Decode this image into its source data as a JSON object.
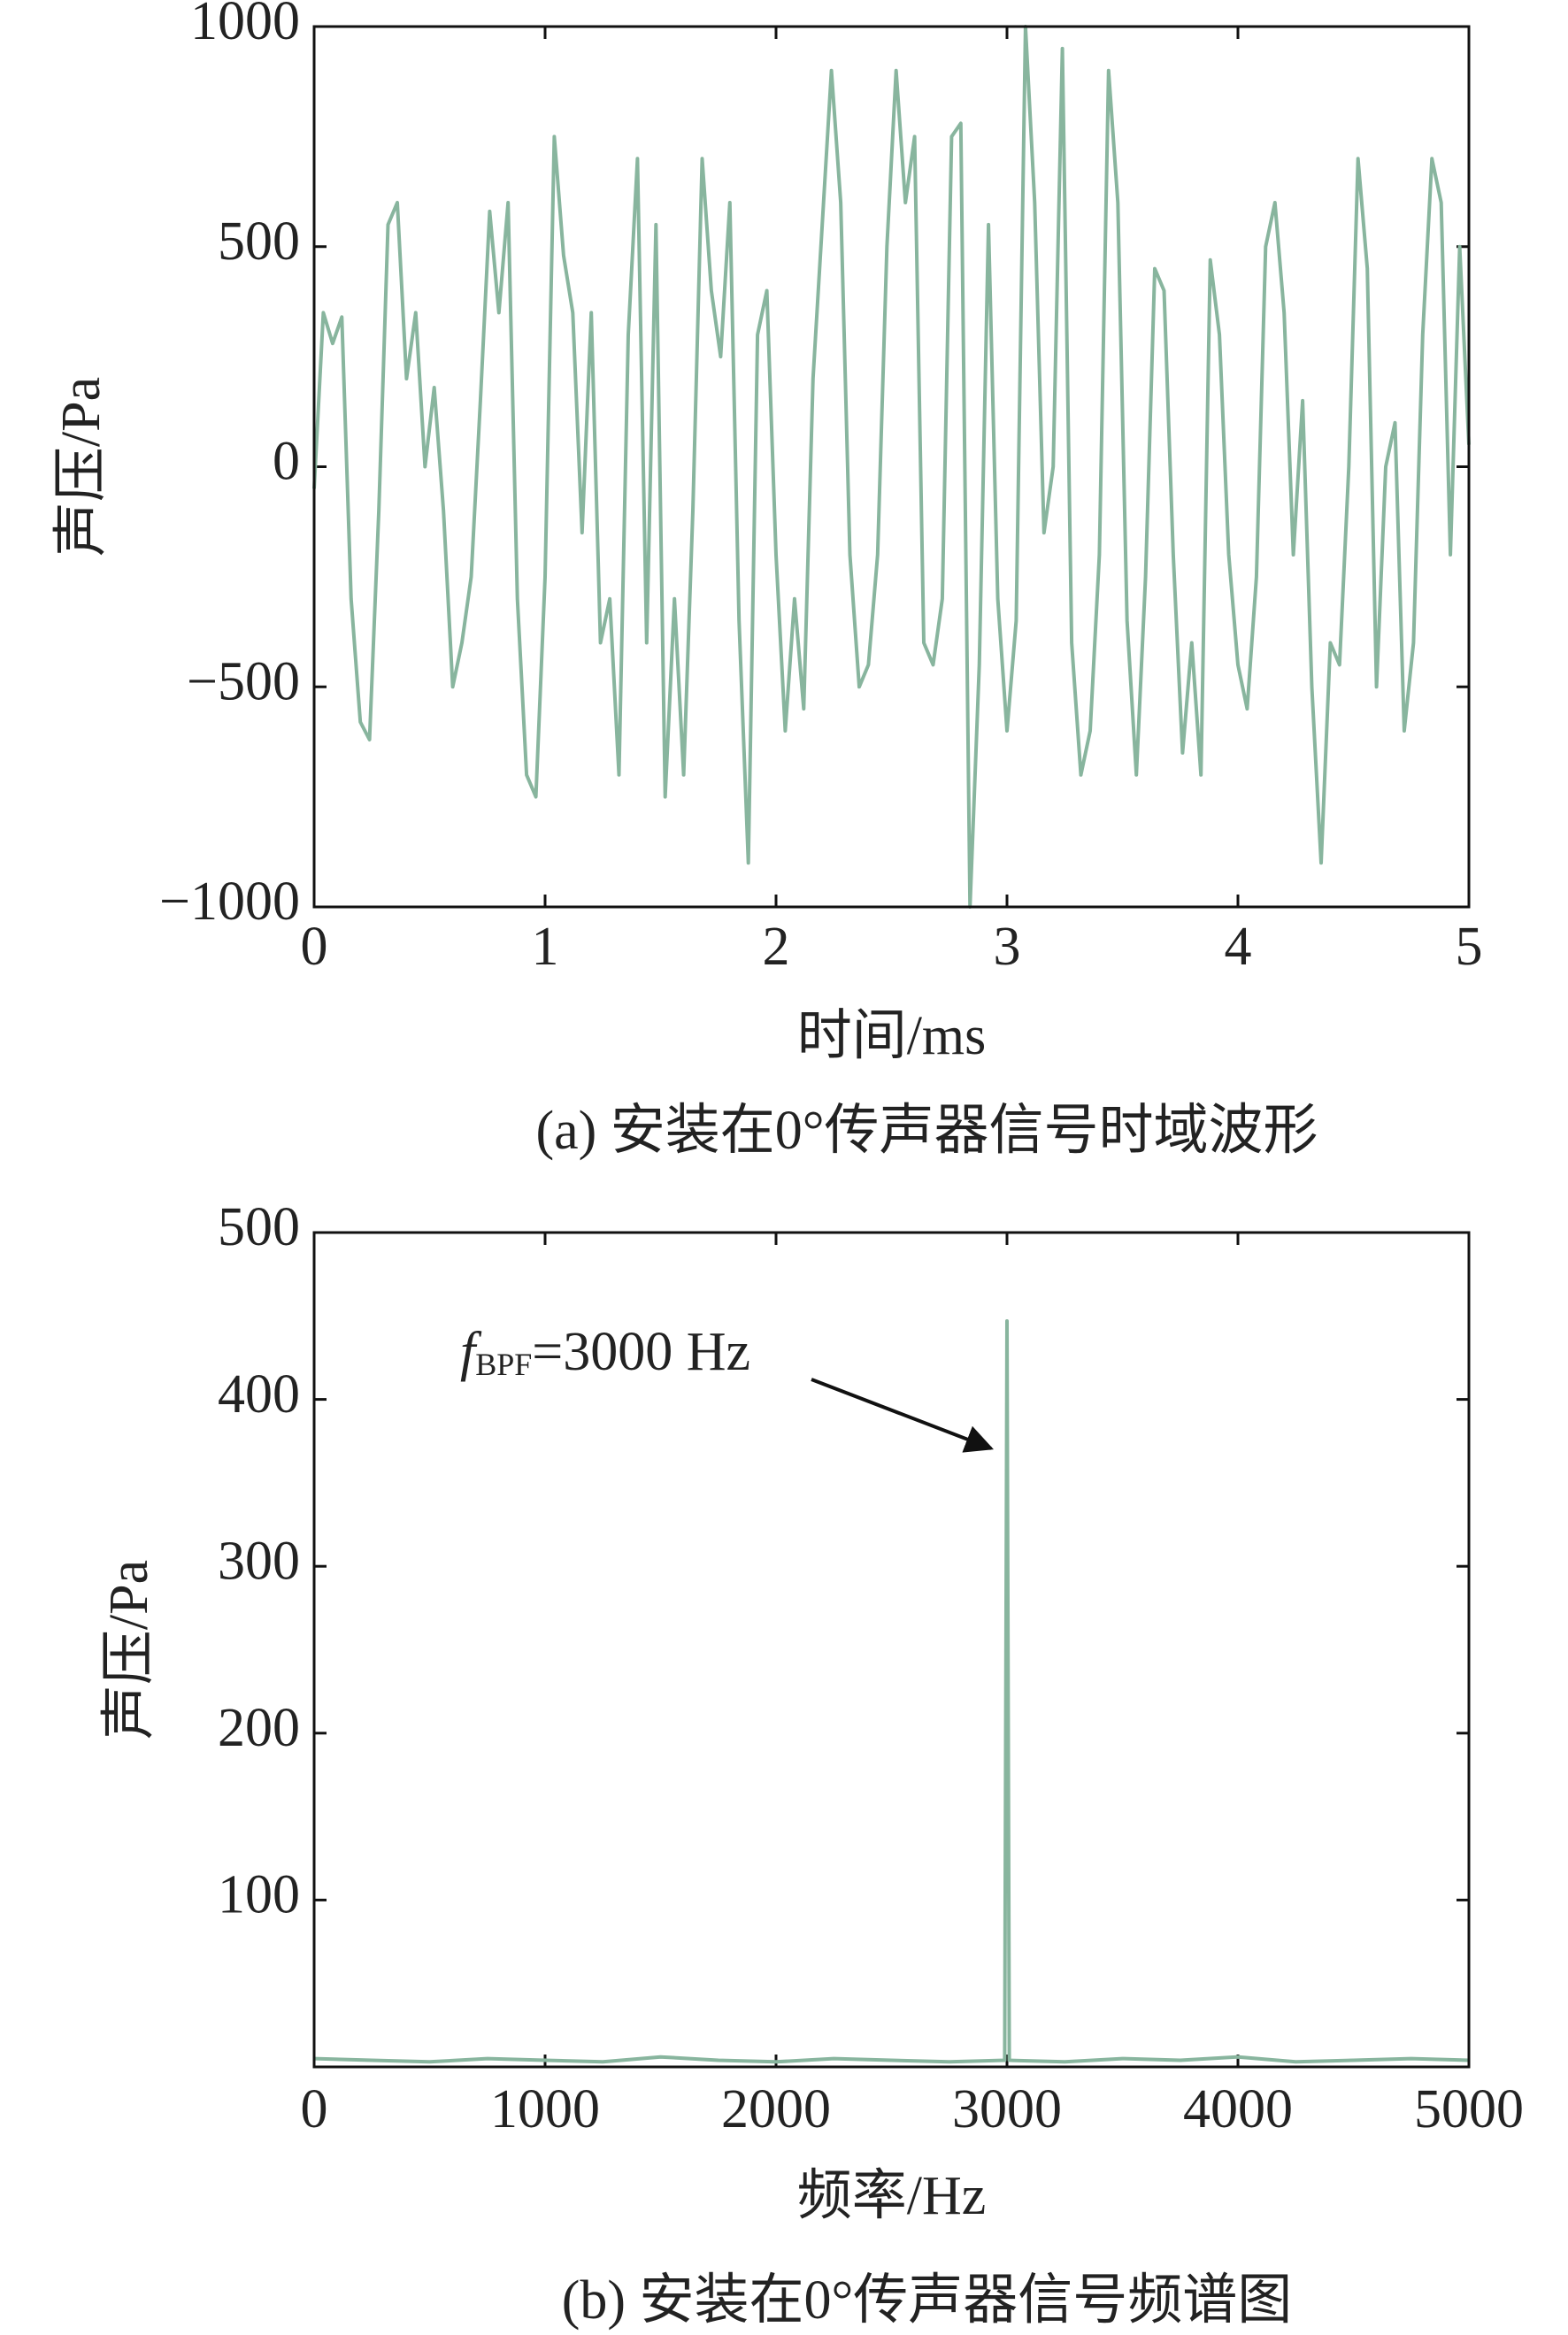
{
  "chart_data": [
    {
      "type": "line",
      "xlabel": "时间/ms",
      "ylabel": "声压/Pa",
      "caption": "(a) 安装在0°传声器信号时域波形",
      "color": "#88b59e",
      "xlim": [
        0,
        5
      ],
      "ylim": [
        -1000,
        1000
      ],
      "xticks": [
        0,
        1,
        2,
        3,
        4,
        5
      ],
      "yticks": [
        {
          "value": -1000,
          "label": "−1000"
        },
        {
          "value": -500,
          "label": "−500"
        },
        0,
        500,
        1000
      ],
      "x": [
        0,
        0.04,
        0.08,
        0.12,
        0.16,
        0.2,
        0.24,
        0.28,
        0.32,
        0.36,
        0.4,
        0.44,
        0.48,
        0.52,
        0.56,
        0.6,
        0.64,
        0.68,
        0.72,
        0.76,
        0.8,
        0.84,
        0.88,
        0.92,
        0.96,
        1.0,
        1.04,
        1.08,
        1.12,
        1.16,
        1.2,
        1.24,
        1.28,
        1.32,
        1.36,
        1.4,
        1.44,
        1.48,
        1.52,
        1.56,
        1.6,
        1.64,
        1.68,
        1.72,
        1.76,
        1.8,
        1.84,
        1.88,
        1.92,
        1.96,
        2.0,
        2.04,
        2.08,
        2.12,
        2.16,
        2.2,
        2.24,
        2.28,
        2.32,
        2.36,
        2.4,
        2.44,
        2.48,
        2.52,
        2.56,
        2.6,
        2.64,
        2.68,
        2.72,
        2.76,
        2.8,
        2.84,
        2.88,
        2.92,
        2.96,
        3.0,
        3.04,
        3.08,
        3.12,
        3.16,
        3.2,
        3.24,
        3.28,
        3.32,
        3.36,
        3.4,
        3.44,
        3.48,
        3.52,
        3.56,
        3.6,
        3.64,
        3.68,
        3.72,
        3.76,
        3.8,
        3.84,
        3.88,
        3.92,
        3.96,
        4.0,
        4.04,
        4.08,
        4.12,
        4.16,
        4.2,
        4.24,
        4.28,
        4.32,
        4.36,
        4.4,
        4.44,
        4.48,
        4.52,
        4.56,
        4.6,
        4.64,
        4.68,
        4.72,
        4.76,
        4.8,
        4.84,
        4.88,
        4.92,
        4.96,
        5.0
      ],
      "values": [
        -50,
        350,
        280,
        340,
        -300,
        -580,
        -620,
        -100,
        550,
        600,
        200,
        350,
        0,
        180,
        -100,
        -500,
        -400,
        -250,
        150,
        580,
        350,
        600,
        -300,
        -700,
        -750,
        -250,
        750,
        480,
        350,
        -150,
        350,
        -400,
        -300,
        -700,
        300,
        700,
        -400,
        550,
        -750,
        -300,
        -700,
        -100,
        700,
        400,
        250,
        600,
        -350,
        -900,
        300,
        400,
        -200,
        -600,
        -300,
        -550,
        200,
        550,
        900,
        600,
        -200,
        -500,
        -450,
        -200,
        500,
        900,
        600,
        750,
        -400,
        -450,
        -300,
        750,
        780,
        -1000,
        -450,
        550,
        -300,
        -600,
        -350,
        1000,
        600,
        -150,
        0,
        950,
        -400,
        -700,
        -600,
        -200,
        900,
        600,
        -350,
        -700,
        -250,
        450,
        400,
        -200,
        -650,
        -400,
        -700,
        470,
        300,
        -200,
        -450,
        -550,
        -250,
        500,
        600,
        350,
        -200,
        150,
        -500,
        -900,
        -400,
        -450,
        0,
        700,
        450,
        -500,
        0,
        100,
        -600,
        -400,
        300,
        700,
        600,
        -200,
        500,
        50
      ]
    },
    {
      "type": "line",
      "xlabel": "频率/Hz",
      "ylabel": "声压/Pa",
      "caption": "(b) 安装在0°传声器信号频谱图",
      "color": "#88b59e",
      "xlim": [
        0,
        5000
      ],
      "ylim": [
        0,
        500
      ],
      "xticks": [
        0,
        1000,
        2000,
        3000,
        4000,
        5000
      ],
      "yticks": [
        100,
        200,
        300,
        400,
        500
      ],
      "annotation": {
        "symbol": "f",
        "subscript": "BPF",
        "text": "=3000 Hz"
      },
      "x": [
        0,
        250,
        500,
        750,
        1000,
        1250,
        1500,
        1750,
        2000,
        2250,
        2500,
        2750,
        2990,
        3000,
        3010,
        3250,
        3500,
        3750,
        4000,
        4250,
        4500,
        4750,
        5000
      ],
      "values": [
        5,
        4,
        3,
        5,
        4,
        3,
        6,
        4,
        3,
        5,
        4,
        3,
        4,
        447,
        4,
        3,
        5,
        4,
        6,
        3,
        4,
        5,
        4
      ]
    }
  ]
}
